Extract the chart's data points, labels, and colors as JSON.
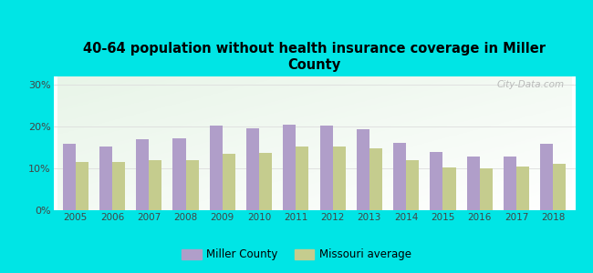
{
  "title": "40-64 population without health insurance coverage in Miller\nCounty",
  "years": [
    2005,
    2006,
    2007,
    2008,
    2009,
    2010,
    2011,
    2012,
    2013,
    2014,
    2015,
    2016,
    2017,
    2018
  ],
  "miller_county": [
    15.8,
    15.2,
    17.0,
    17.2,
    20.2,
    19.5,
    20.5,
    20.3,
    19.3,
    16.2,
    14.0,
    12.8,
    12.8,
    15.8
  ],
  "missouri_avg": [
    11.5,
    11.5,
    12.0,
    12.0,
    13.5,
    13.8,
    15.2,
    15.2,
    14.8,
    12.0,
    10.3,
    10.1,
    10.5,
    11.1
  ],
  "miller_color": "#b09ec9",
  "missouri_color": "#c5cc8e",
  "bg_color": "#00e5e5",
  "ylabel_ticks": [
    "0%",
    "10%",
    "20%",
    "30%"
  ],
  "ytick_values": [
    0,
    10,
    20,
    30
  ],
  "ylim": [
    0,
    32
  ],
  "legend_miller": "Miller County",
  "legend_missouri": "Missouri average",
  "watermark": "City-Data.com",
  "bar_width": 0.35
}
